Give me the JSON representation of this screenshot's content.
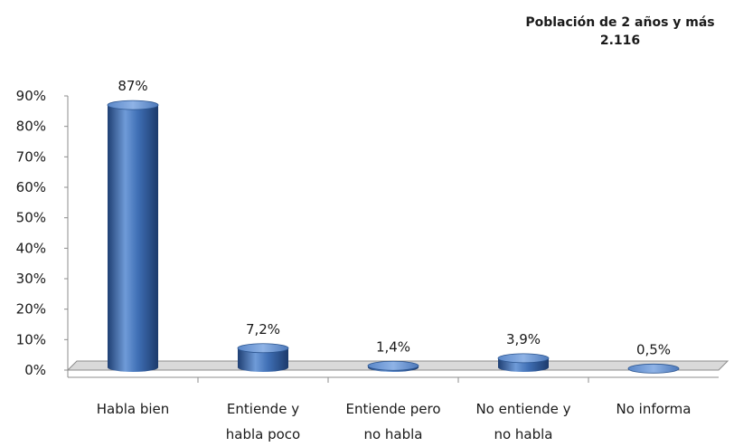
{
  "header": {
    "title": "Población de 2 años y más",
    "total": "2.116"
  },
  "chart_data": {
    "type": "bar",
    "style": "3d-cylinder",
    "categories": [
      [
        "Habla bien"
      ],
      [
        "Entiende y",
        "habla poco"
      ],
      [
        "Entiende pero",
        "no habla"
      ],
      [
        "No entiende y",
        "no habla"
      ],
      [
        "No informa"
      ]
    ],
    "values": [
      87,
      7.2,
      1.4,
      3.9,
      0.5
    ],
    "data_labels": [
      "87%",
      "7,2%",
      "1,4%",
      "3,9%",
      "0,5%"
    ],
    "ylim": [
      0,
      90
    ],
    "yticks": [
      "0%",
      "10%",
      "20%",
      "30%",
      "40%",
      "50%",
      "60%",
      "70%",
      "80%",
      "90%"
    ],
    "grid": false,
    "bar_color": "#3f6fb5",
    "bar_dark": "#1f3f73",
    "bar_light": "#7aa3de",
    "floor_color": "#d9d9d9"
  }
}
